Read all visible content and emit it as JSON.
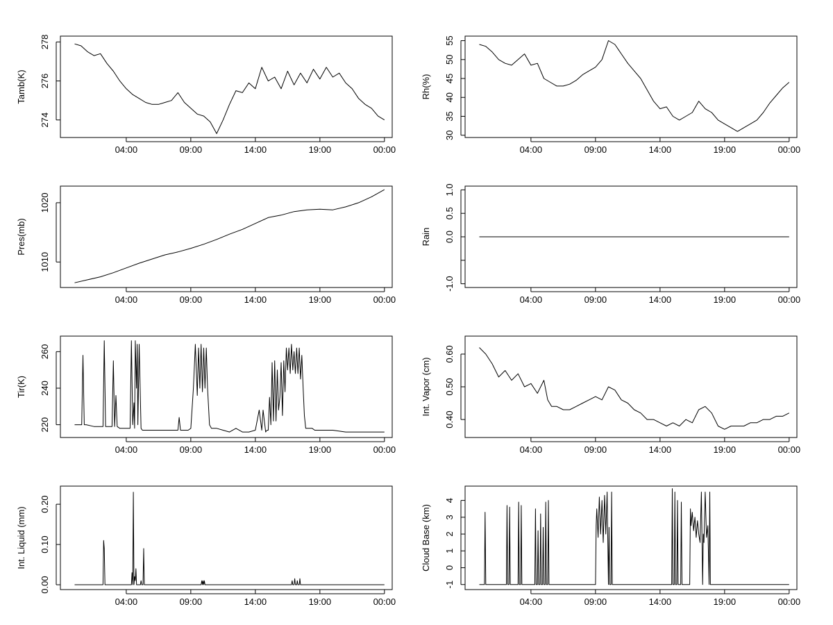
{
  "chart_data": [
    {
      "type": "line",
      "ylabel": "Tamb(K)",
      "xlabel": "",
      "x_ticks": [
        "04:00",
        "09:00",
        "14:00",
        "19:00",
        "00:00"
      ],
      "y_ticks": [
        274,
        276,
        278
      ],
      "xlim": [
        -2.1,
        23.6
      ],
      "ylim": [
        273.1,
        278.3
      ],
      "series": [
        {
          "x": [
            -1,
            -0.5,
            0,
            0.5,
            1,
            1.5,
            2,
            2.5,
            3,
            3.5,
            4,
            4.5,
            5,
            5.5,
            6,
            6.5,
            7,
            7.5,
            8,
            8.5,
            9,
            9.5,
            10,
            10.5,
            11,
            11.5,
            12,
            12.5,
            13,
            13.5,
            14,
            14.5,
            15,
            15.5,
            16,
            16.5,
            17,
            17.5,
            18,
            18.5,
            19,
            19.5,
            20,
            20.5,
            21,
            21.5,
            22,
            22.5,
            23
          ],
          "values": [
            277.9,
            277.8,
            277.5,
            277.3,
            277.4,
            276.9,
            276.5,
            276.0,
            275.6,
            275.3,
            275.1,
            274.9,
            274.8,
            274.8,
            274.9,
            275.0,
            275.4,
            274.9,
            274.6,
            274.3,
            274.2,
            273.9,
            273.3,
            274.0,
            274.8,
            275.5,
            275.4,
            275.9,
            275.6,
            276.7,
            276.0,
            276.2,
            275.6,
            276.5,
            275.8,
            276.4,
            275.9,
            276.6,
            276.1,
            276.7,
            276.2,
            276.4,
            275.9,
            275.6,
            275.1,
            274.8,
            274.6,
            274.2,
            274.0
          ]
        }
      ]
    },
    {
      "type": "line",
      "ylabel": "Rh(%)",
      "xlabel": "",
      "x_ticks": [
        "04:00",
        "09:00",
        "14:00",
        "19:00",
        "00:00"
      ],
      "y_ticks": [
        30,
        35,
        40,
        45,
        50,
        55
      ],
      "xlim": [
        -2.1,
        23.6
      ],
      "ylim": [
        29.4,
        56.2
      ],
      "series": [
        {
          "x": [
            -1,
            -0.5,
            0,
            0.5,
            1,
            1.5,
            2,
            2.5,
            3,
            3.5,
            4,
            4.5,
            5,
            5.5,
            6,
            6.5,
            7,
            7.5,
            8,
            8.5,
            9,
            9.5,
            10,
            10.5,
            11,
            11.5,
            12,
            12.5,
            13,
            13.5,
            14,
            14.5,
            15,
            15.5,
            16,
            16.5,
            17,
            17.5,
            18,
            18.5,
            19,
            19.5,
            20,
            20.5,
            21,
            21.5,
            22,
            22.5,
            23
          ],
          "values": [
            54,
            53.5,
            52,
            50,
            49,
            48.5,
            50,
            51.5,
            48.5,
            49,
            45,
            44,
            43,
            43,
            43.5,
            44.5,
            46,
            47,
            48,
            50,
            55,
            54,
            51.5,
            49,
            47,
            45,
            42,
            39,
            37,
            37.5,
            35,
            34,
            35,
            36,
            39,
            37,
            36,
            34,
            33,
            32,
            31,
            32,
            33,
            34,
            36,
            38.5,
            40.5,
            42.5,
            44
          ]
        }
      ]
    },
    {
      "type": "line",
      "ylabel": "Pres(mb)",
      "xlabel": "",
      "x_ticks": [
        "04:00",
        "09:00",
        "14:00",
        "19:00",
        "00:00"
      ],
      "y_ticks": [
        1010,
        1020
      ],
      "xlim": [
        -2.1,
        23.6
      ],
      "ylim": [
        1005.7,
        1022.8
      ],
      "series": [
        {
          "x": [
            -1,
            0,
            1,
            2,
            3,
            4,
            5,
            6,
            7,
            8,
            9,
            10,
            11,
            12,
            13,
            14,
            15,
            16,
            17,
            18,
            19,
            20,
            21,
            22,
            23
          ],
          "values": [
            1006.5,
            1007.0,
            1007.5,
            1008.2,
            1009.0,
            1009.8,
            1010.5,
            1011.2,
            1011.7,
            1012.3,
            1013.0,
            1013.8,
            1014.7,
            1015.5,
            1016.5,
            1017.5,
            1017.9,
            1018.5,
            1018.8,
            1018.9,
            1018.8,
            1019.3,
            1020.0,
            1021.0,
            1022.2
          ]
        }
      ]
    },
    {
      "type": "line",
      "ylabel": "Rain",
      "xlabel": "",
      "x_ticks": [
        "04:00",
        "09:00",
        "14:00",
        "19:00",
        "00:00"
      ],
      "y_ticks": [
        -1.0,
        -0.5,
        0.0,
        0.5,
        1.0
      ],
      "x_tick_labels": [
        "04:00",
        "09:00",
        "14:00",
        "19:00",
        "00:00"
      ],
      "y_tick_labels": [
        "-1.0",
        "",
        "0.0",
        "0.5",
        "1.0"
      ],
      "xlim": [
        -2.1,
        23.6
      ],
      "ylim": [
        -1.08,
        1.08
      ],
      "series": [
        {
          "x": [
            -1,
            23
          ],
          "values": [
            0,
            0
          ]
        }
      ]
    },
    {
      "type": "line",
      "ylabel": "Tir(K)",
      "xlabel": "",
      "x_ticks": [
        "04:00",
        "09:00",
        "14:00",
        "19:00",
        "00:00"
      ],
      "y_ticks": [
        220,
        240,
        260
      ],
      "xlim": [
        -2.1,
        23.6
      ],
      "ylim": [
        213.0,
        268.5
      ],
      "series": [
        {
          "x": [
            -1,
            -0.45,
            -0.35,
            -0.25,
            -0.1,
            0.5,
            1.2,
            1.3,
            1.4,
            1.55,
            1.7,
            1.9,
            2.0,
            2.1,
            2.2,
            2.3,
            2.5,
            3.3,
            3.4,
            3.5,
            3.6,
            3.65,
            3.7,
            3.8,
            3.85,
            3.9,
            4.0,
            4.15,
            4.25,
            4.35,
            4.45,
            4.55,
            5.0,
            6.0,
            6.5,
            7.0,
            7.1,
            7.2,
            7.5,
            7.8,
            8.0,
            8.2,
            8.35,
            8.5,
            8.6,
            8.7,
            8.8,
            8.9,
            9.0,
            9.1,
            9.2,
            9.3,
            9.45,
            9.6,
            9.8,
            10.0,
            10.5,
            11.0,
            11.5,
            12.0,
            12.5,
            13.0,
            13.3,
            13.5,
            13.6,
            13.8,
            13.9,
            14.0,
            14.1,
            14.2,
            14.3,
            14.4,
            14.5,
            14.6,
            14.7,
            14.8,
            14.9,
            15.0,
            15.1,
            15.2,
            15.3,
            15.4,
            15.5,
            15.6,
            15.7,
            15.8,
            15.9,
            16.0,
            16.1,
            16.2,
            16.3,
            16.4,
            16.5,
            16.6,
            16.7,
            16.8,
            16.9,
            17.0,
            17.2,
            17.4,
            17.6,
            18.0,
            19.0,
            20.0,
            21.0,
            22.0,
            23.0
          ],
          "values": [
            220,
            220,
            258,
            220,
            220,
            219,
            219,
            266,
            219,
            219,
            219,
            219,
            255,
            219,
            236,
            219,
            218,
            218,
            266,
            220,
            232,
            218,
            266,
            240,
            264,
            220,
            264,
            218,
            217,
            217,
            217,
            217,
            217,
            217,
            217,
            217,
            224,
            217,
            217,
            217,
            218,
            240,
            264,
            236,
            262,
            240,
            264,
            238,
            262,
            240,
            262,
            240,
            220,
            218,
            218,
            218,
            217,
            216,
            218,
            216,
            216,
            217,
            228,
            217,
            228,
            216,
            217,
            217,
            235,
            220,
            254,
            222,
            255,
            222,
            250,
            228,
            235,
            254,
            225,
            255,
            238,
            262,
            250,
            262,
            248,
            264,
            250,
            260,
            248,
            262,
            248,
            262,
            245,
            258,
            240,
            225,
            218,
            218,
            218,
            218,
            217,
            217,
            217,
            216,
            216,
            216,
            216
          ]
        }
      ]
    },
    {
      "type": "line",
      "ylabel": "Int. Vapor (cm)",
      "xlabel": "",
      "x_ticks": [
        "04:00",
        "09:00",
        "14:00",
        "19:00",
        "00:00"
      ],
      "y_ticks": [
        0.4,
        0.5,
        0.6
      ],
      "y_tick_labels": [
        "0.40",
        "0.50",
        "0.60"
      ],
      "xlim": [
        -2.1,
        23.6
      ],
      "ylim": [
        0.345,
        0.655
      ],
      "series": [
        {
          "x": [
            -1,
            -0.5,
            0,
            0.5,
            1,
            1.5,
            2,
            2.5,
            3,
            3.5,
            4,
            4.3,
            4.6,
            5,
            5.5,
            6,
            6.5,
            7,
            7.5,
            8,
            8.5,
            9,
            9.5,
            10,
            10.5,
            11,
            11.5,
            12,
            12.5,
            13,
            13.5,
            14,
            14.5,
            15,
            15.5,
            16,
            16.5,
            17,
            17.5,
            18,
            18.5,
            19,
            19.5,
            20,
            20.5,
            21,
            21.5,
            22,
            22.5,
            23
          ],
          "values": [
            0.62,
            0.6,
            0.57,
            0.53,
            0.55,
            0.52,
            0.54,
            0.5,
            0.51,
            0.48,
            0.52,
            0.46,
            0.44,
            0.44,
            0.43,
            0.43,
            0.44,
            0.45,
            0.46,
            0.47,
            0.46,
            0.5,
            0.49,
            0.46,
            0.45,
            0.43,
            0.42,
            0.4,
            0.4,
            0.39,
            0.38,
            0.39,
            0.38,
            0.4,
            0.39,
            0.43,
            0.44,
            0.42,
            0.38,
            0.37,
            0.38,
            0.38,
            0.38,
            0.39,
            0.39,
            0.4,
            0.4,
            0.41,
            0.41,
            0.42
          ]
        }
      ]
    },
    {
      "type": "line",
      "ylabel": "Int. Liquid (mm)",
      "xlabel": "",
      "x_ticks": [
        "04:00",
        "09:00",
        "14:00",
        "19:00",
        "00:00"
      ],
      "y_ticks": [
        0.0,
        0.1,
        0.2
      ],
      "y_tick_labels": [
        "0.00",
        "0.10",
        "0.20"
      ],
      "xlim": [
        -2.1,
        23.6
      ],
      "ylim": [
        -0.012,
        0.245
      ],
      "series": [
        {
          "x": [
            -1,
            1.2,
            1.25,
            1.3,
            1.35,
            3.4,
            3.45,
            3.5,
            3.55,
            3.6,
            3.65,
            3.7,
            3.75,
            3.8,
            4.1,
            4.15,
            4.2,
            4.3,
            4.35,
            4.4,
            8.8,
            8.85,
            8.9,
            8.95,
            9.0,
            9.05,
            9.1,
            15.8,
            15.85,
            15.9,
            16.0,
            16.05,
            16.1,
            16.2,
            16.25,
            16.3,
            16.4,
            16.45,
            16.5,
            23
          ],
          "values": [
            0,
            0,
            0.11,
            0.09,
            0,
            0,
            0.03,
            0,
            0.23,
            0,
            0.02,
            0.01,
            0.04,
            0,
            0,
            0.01,
            0,
            0,
            0.09,
            0,
            0,
            0.01,
            0,
            0.01,
            0,
            0.01,
            0,
            0,
            0.01,
            0,
            0,
            0.015,
            0,
            0,
            0.01,
            0,
            0,
            0.015,
            0,
            0
          ]
        }
      ]
    },
    {
      "type": "line",
      "ylabel": "Cloud Base (km)",
      "xlabel": "",
      "x_ticks": [
        "04:00",
        "09:00",
        "14:00",
        "19:00",
        "00:00"
      ],
      "y_ticks": [
        -1,
        0,
        1,
        2,
        3,
        4
      ],
      "xlim": [
        -2.1,
        23.6
      ],
      "ylim": [
        -1.3,
        4.85
      ],
      "series": [
        {
          "x": [
            -1,
            -0.6,
            -0.55,
            -0.5,
            1.1,
            1.15,
            1.2,
            1.3,
            1.35,
            1.4,
            2.0,
            2.05,
            2.1,
            2.2,
            2.25,
            2.3,
            3.3,
            3.35,
            3.4,
            3.5,
            3.55,
            3.6,
            3.7,
            3.75,
            3.8,
            3.9,
            3.95,
            4.0,
            4.1,
            4.15,
            4.2,
            4.3,
            4.35,
            4.4,
            8.0,
            8.05,
            8.1,
            8.2,
            8.3,
            8.4,
            8.5,
            8.6,
            8.7,
            8.8,
            8.9,
            9.0,
            9.05,
            9.1,
            9.2,
            9.25,
            9.3,
            9.4,
            13.9,
            13.95,
            14.0,
            14.1,
            14.15,
            14.2,
            14.3,
            14.35,
            14.4,
            14.6,
            14.65,
            14.7,
            15.3,
            15.35,
            15.4,
            15.5,
            15.6,
            15.7,
            15.8,
            15.9,
            16.0,
            16.1,
            16.2,
            16.3,
            16.35,
            16.4,
            16.5,
            16.6,
            16.7,
            16.8,
            16.85,
            16.9,
            17.0,
            23
          ],
          "values": [
            -1,
            -1,
            3.3,
            -1,
            -1,
            3.7,
            -1,
            -1,
            3.6,
            -1,
            -1,
            3.9,
            -1,
            -1,
            3.7,
            -1,
            -1,
            3.5,
            -1,
            -1,
            2.2,
            -1,
            -1,
            3.2,
            -1,
            -1,
            2.4,
            -1,
            -1,
            3.9,
            -1,
            -1,
            4.0,
            -1,
            -1,
            2.5,
            3.5,
            1.8,
            4.2,
            2.0,
            4.0,
            1.5,
            4.3,
            2.0,
            4.5,
            -1,
            2.4,
            -1,
            -1,
            4.5,
            -1,
            -1,
            -1,
            4.7,
            -1,
            -1,
            4.5,
            -1,
            -1,
            4.0,
            -1,
            -1,
            3.9,
            -1,
            -1,
            3.5,
            2.5,
            3.3,
            2.2,
            3.0,
            1.8,
            2.8,
            2.0,
            1.5,
            4.5,
            -1,
            2.0,
            1.5,
            4.5,
            1.8,
            2.5,
            -1,
            4.5,
            -1,
            -1,
            -1
          ]
        }
      ]
    }
  ]
}
